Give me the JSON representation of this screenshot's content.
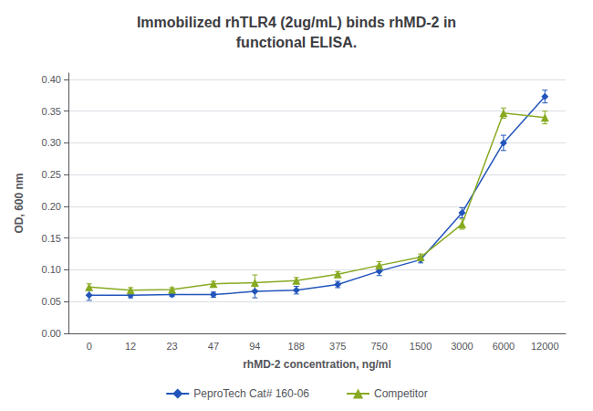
{
  "chart_data": {
    "type": "line",
    "title": "Immobilized rhTLR4 (2ug/mL) binds rhMD-2 in\nfunctional ELISA.",
    "xlabel": "rhMD-2 concentration, ng/ml",
    "ylabel": "OD, 600 nm",
    "categories": [
      "0",
      "12",
      "23",
      "47",
      "94",
      "188",
      "375",
      "750",
      "1500",
      "3000",
      "6000",
      "12000"
    ],
    "series": [
      {
        "name": "PeproTech Cat# 160-06",
        "color": "#2255BB",
        "marker": "diamond",
        "values": [
          0.06,
          0.06,
          0.061,
          0.061,
          0.066,
          0.068,
          0.077,
          0.098,
          0.116,
          0.19,
          0.3,
          0.373
        ],
        "errors": [
          0.008,
          0.004,
          0.003,
          0.004,
          0.01,
          0.006,
          0.005,
          0.007,
          0.005,
          0.008,
          0.012,
          0.01
        ]
      },
      {
        "name": "Competitor",
        "color": "#88AA22",
        "marker": "triangle",
        "values": [
          0.073,
          0.068,
          0.069,
          0.078,
          0.08,
          0.083,
          0.093,
          0.107,
          0.12,
          0.172,
          0.347,
          0.34
        ],
        "errors": [
          0.005,
          0.004,
          0.003,
          0.004,
          0.012,
          0.005,
          0.004,
          0.006,
          0.005,
          0.008,
          0.008,
          0.01
        ]
      }
    ],
    "ylim": [
      0.0,
      0.41
    ],
    "yticks": [
      {
        "value": 0.0,
        "label": "0.00"
      },
      {
        "value": 0.05,
        "label": "0.05"
      },
      {
        "value": 0.1,
        "label": "0.10"
      },
      {
        "value": 0.15,
        "label": "0.15"
      },
      {
        "value": 0.2,
        "label": "0.20"
      },
      {
        "value": 0.25,
        "label": "0.25"
      },
      {
        "value": 0.3,
        "label": "0.30"
      },
      {
        "value": 0.35,
        "label": "0.35"
      },
      {
        "value": 0.4,
        "label": "0.40"
      }
    ],
    "grid": true,
    "legend": "bottom"
  }
}
